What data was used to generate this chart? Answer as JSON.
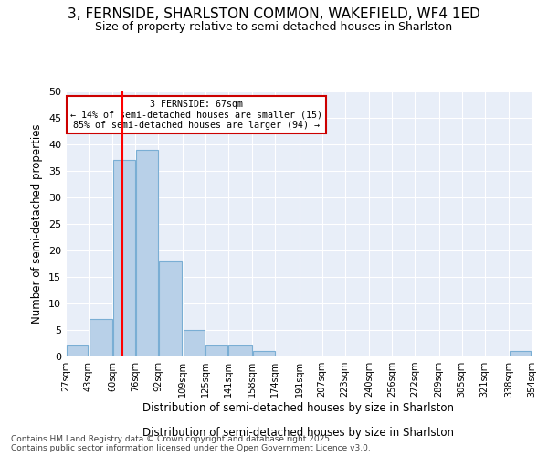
{
  "title1": "3, FERNSIDE, SHARLSTON COMMON, WAKEFIELD, WF4 1ED",
  "title2": "Size of property relative to semi-detached houses in Sharlston",
  "xlabel": "Distribution of semi-detached houses by size in Sharlston",
  "ylabel": "Number of semi-detached properties",
  "footer1": "Contains HM Land Registry data © Crown copyright and database right 2025.",
  "footer2": "Contains public sector information licensed under the Open Government Licence v3.0.",
  "bins": [
    27,
    43,
    60,
    76,
    92,
    109,
    125,
    141,
    158,
    174,
    191,
    207,
    223,
    240,
    256,
    272,
    289,
    305,
    321,
    338,
    354
  ],
  "counts": [
    2,
    7,
    37,
    39,
    18,
    5,
    2,
    2,
    1,
    0,
    0,
    0,
    0,
    0,
    0,
    0,
    0,
    0,
    0,
    1
  ],
  "bar_color": "#b8d0e8",
  "bar_edge_color": "#7aaed4",
  "red_line_x": 67,
  "annotation_title": "3 FERNSIDE: 67sqm",
  "annotation_line1": "← 14% of semi-detached houses are smaller (15)",
  "annotation_line2": "85% of semi-detached houses are larger (94) →",
  "annotation_box_color": "#ffffff",
  "annotation_box_edge": "#cc0000",
  "ylim": [
    0,
    50
  ],
  "yticks": [
    0,
    5,
    10,
    15,
    20,
    25,
    30,
    35,
    40,
    45,
    50
  ],
  "bg_color": "#e8eef8",
  "title1_fontsize": 11,
  "title2_fontsize": 9,
  "footer_fontsize": 6.5
}
